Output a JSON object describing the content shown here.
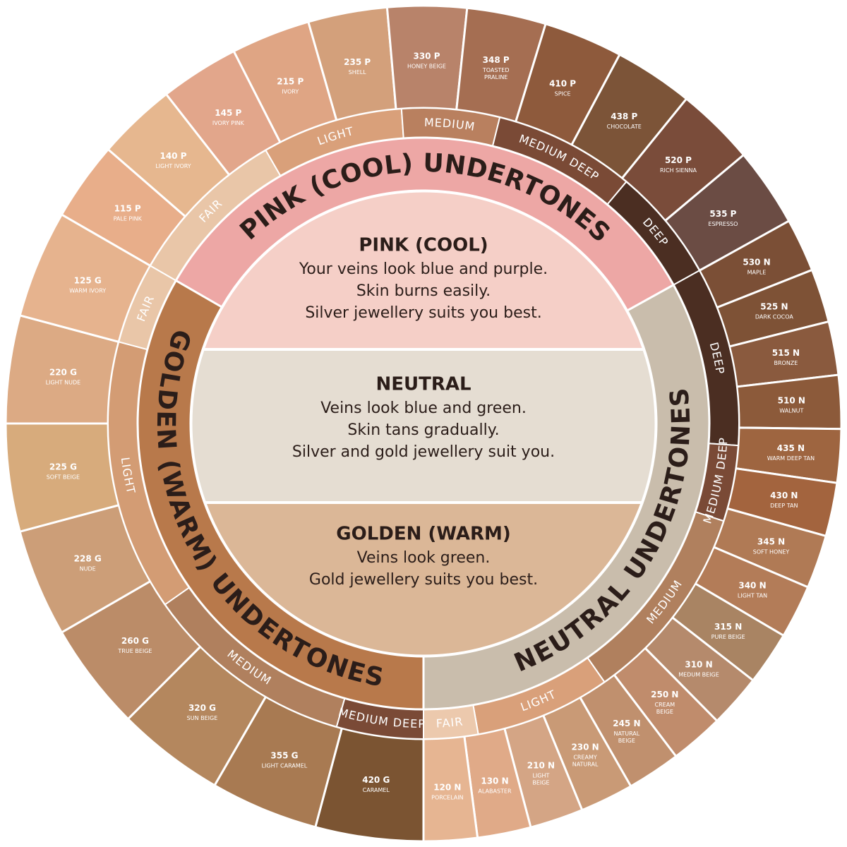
{
  "center": [
    {
      "heading": "PINK (COOL)",
      "lines": [
        "Your veins look blue and purple.",
        "Skin burns easily.",
        "Silver jewellery suits you best."
      ]
    },
    {
      "heading": "NEUTRAL",
      "lines": [
        "Veins look blue and green.",
        "Skin tans gradually.",
        "Silver and gold jewellery suit you."
      ]
    },
    {
      "heading": "GOLDEN (WARM)",
      "lines": [
        "Veins look green.",
        "Gold jewellery suits you best."
      ]
    }
  ],
  "undertones": [
    {
      "label": "PINK (COOL) UNDERTONES",
      "bands": [
        "FAIR",
        "LIGHT",
        "MEDIUM",
        "MEDIUM DEEP",
        "DEEP"
      ],
      "shades": [
        {
          "code": "115 P",
          "name": [
            "PALE PINK"
          ]
        },
        {
          "code": "140 P",
          "name": [
            "LIGHT IVORY"
          ]
        },
        {
          "code": "145 P",
          "name": [
            "IVORY PINK"
          ]
        },
        {
          "code": "215 P",
          "name": [
            "IVORY"
          ]
        },
        {
          "code": "235 P",
          "name": [
            "SHELL"
          ]
        },
        {
          "code": "330 P",
          "name": [
            "HONEY BEIGE"
          ]
        },
        {
          "code": "348 P",
          "name": [
            "TOASTED",
            "PRALINE"
          ]
        },
        {
          "code": "410 P",
          "name": [
            "SPICE"
          ]
        },
        {
          "code": "438 P",
          "name": [
            "CHOCOLATE"
          ]
        },
        {
          "code": "520 P",
          "name": [
            "RICH SIENNA"
          ]
        },
        {
          "code": "535 P",
          "name": [
            "ESPRESSO"
          ]
        }
      ]
    },
    {
      "label": "NEUTRAL UNDERTONES",
      "bands": [
        "DEEP",
        "MEDIUM DEEP",
        "MEDIUM",
        "LIGHT",
        "FAIR"
      ],
      "shades": [
        {
          "code": "530 N",
          "name": [
            "MAPLE"
          ]
        },
        {
          "code": "525 N",
          "name": [
            "DARK  COCOA"
          ]
        },
        {
          "code": "515 N",
          "name": [
            "BRONZE"
          ]
        },
        {
          "code": "510 N",
          "name": [
            "WALNUT"
          ]
        },
        {
          "code": "435 N",
          "name": [
            "WARM DEEP TAN"
          ]
        },
        {
          "code": "430 N",
          "name": [
            "DEEP TAN"
          ]
        },
        {
          "code": "345 N",
          "name": [
            "SOFT HONEY"
          ]
        },
        {
          "code": "340 N",
          "name": [
            "LIGHT TAN"
          ]
        },
        {
          "code": "315 N",
          "name": [
            "PURE BEIGE"
          ]
        },
        {
          "code": "310 N",
          "name": [
            "MEDUM BEIGE"
          ]
        },
        {
          "code": "250 N",
          "name": [
            "CREAM",
            "BEIGE"
          ]
        },
        {
          "code": "245 N",
          "name": [
            "NATURAL",
            "BEIGE"
          ]
        },
        {
          "code": "230 N",
          "name": [
            "CREAMY",
            "NATURAL"
          ]
        },
        {
          "code": "210 N",
          "name": [
            "LIGHT",
            "BEIGE"
          ]
        },
        {
          "code": "130 N",
          "name": [
            "ALABASTER"
          ]
        },
        {
          "code": "120 N",
          "name": [
            "PORCELAIN"
          ]
        }
      ]
    },
    {
      "label": "GOLDEN (WARM) UNDERTONES",
      "bands": [
        "MEDIUM DEEP",
        "MEDIUM",
        "LIGHT",
        "FAIR"
      ],
      "shades": [
        {
          "code": "420 G",
          "name": [
            "CARAMEL"
          ]
        },
        {
          "code": "355 G",
          "name": [
            "LIGHT CARAMEL"
          ]
        },
        {
          "code": "320 G",
          "name": [
            "SUN BEIGE"
          ]
        },
        {
          "code": "260 G",
          "name": [
            "TRUE BEIGE"
          ]
        },
        {
          "code": "228 G",
          "name": [
            "NUDE"
          ]
        },
        {
          "code": "225 G",
          "name": [
            "SOFT BEIGE"
          ]
        },
        {
          "code": "220 G",
          "name": [
            "LIGHT NUDE"
          ]
        },
        {
          "code": "125 G",
          "name": [
            "WARM IVORY"
          ]
        }
      ]
    }
  ]
}
